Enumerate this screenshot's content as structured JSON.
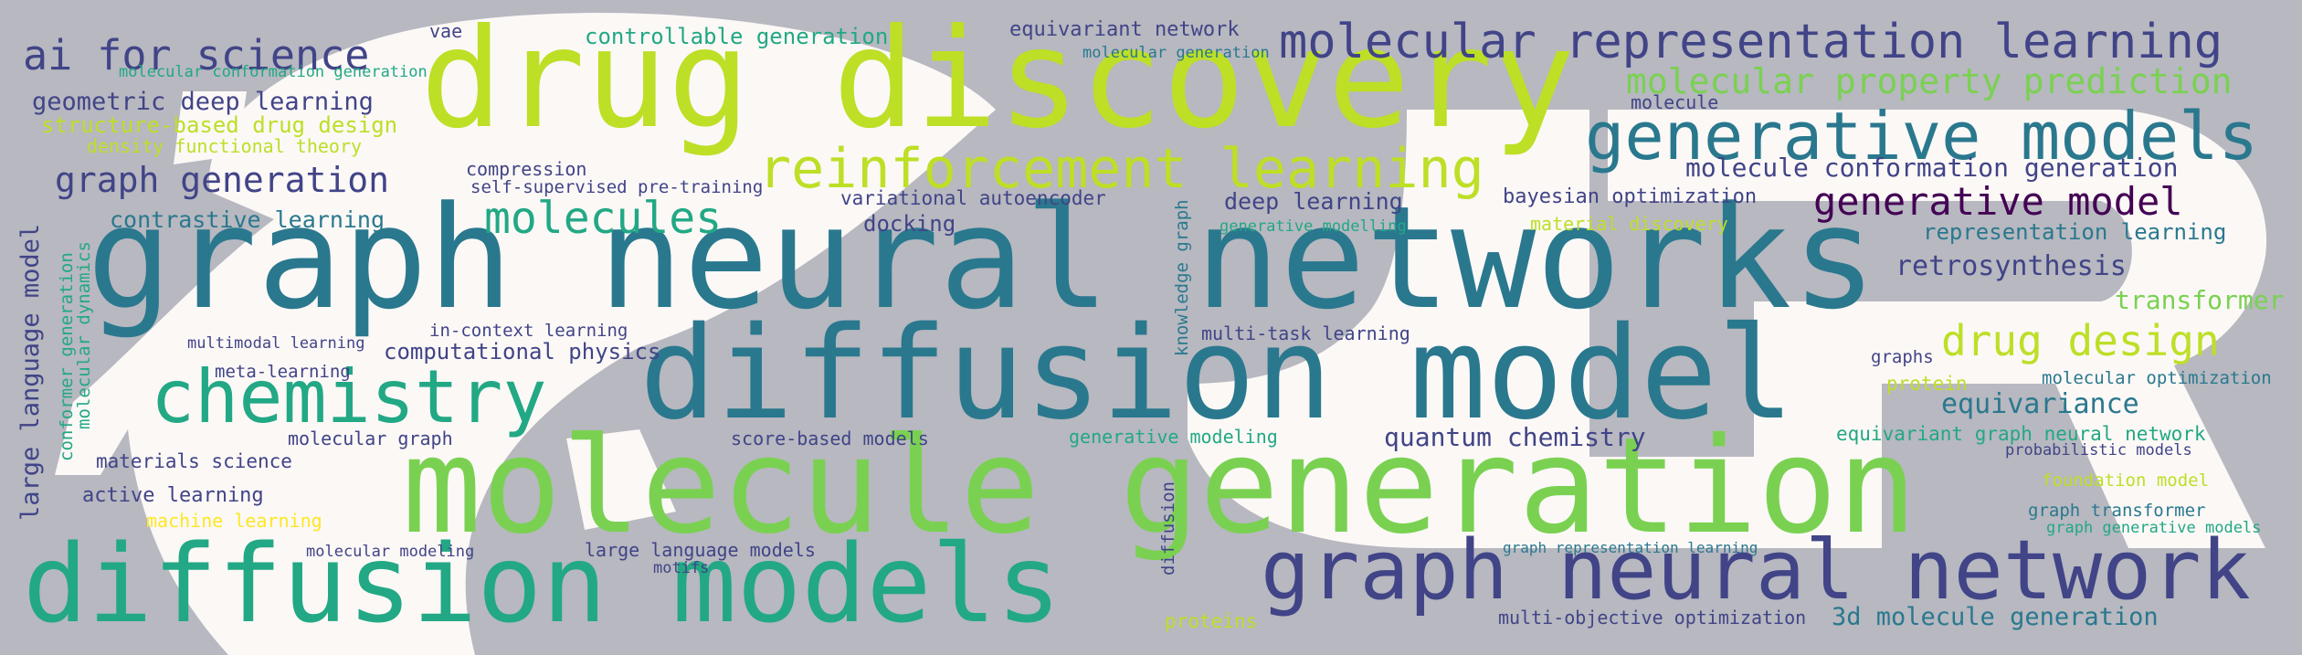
{
  "colors": {
    "background": "#b7b8c0",
    "mask": "#fbf8f6",
    "viridis": [
      "#440154",
      "#414487",
      "#2a788e",
      "#22a884",
      "#7ad151",
      "#bddf26",
      "#fde725"
    ]
  },
  "words": [
    "drug discovery",
    "graph neural networks",
    "diffusion model",
    "molecule generation",
    "diffusion models",
    "graph neural network",
    "generative models",
    "molecular representation learning",
    "reinforcement learning",
    "chemistry",
    "ai for science",
    "molecular property prediction",
    "generative model",
    "drug design",
    "molecules",
    "graph generation",
    "molecule conformation generation",
    "geometric deep learning",
    "controllable generation",
    "equivariant network",
    "retrosynthesis",
    "transformer",
    "representation learning",
    "equivariance",
    "quantum chemistry",
    "3d molecule generation",
    "contrastive learning",
    "large language model",
    "structure-based drug design",
    "density functional theory",
    "self-supervised pre-training",
    "variational autoencoder",
    "docking",
    "deep learning",
    "bayesian optimization",
    "material discovery",
    "compression",
    "molecule",
    "vae",
    "molecular generation",
    "generative modelling",
    "knowledge graph",
    "multi-task learning",
    "computational physics",
    "in-context learning",
    "multimodal learning",
    "meta-learning",
    "molecular graph",
    "materials science",
    "active learning",
    "machine learning",
    "molecular modeling",
    "large language models",
    "motifs",
    "score-based models",
    "generative modeling",
    "graph representation learning",
    "multi-objective optimization",
    "proteins",
    "protein",
    "graphs",
    "molecular optimization",
    "equivariant graph neural network",
    "probabilistic models",
    "foundation model",
    "graph transformer",
    "graph generative models",
    "conformer generation",
    "molecular dynamics",
    "diffusion",
    "molecular conformation generation"
  ]
}
